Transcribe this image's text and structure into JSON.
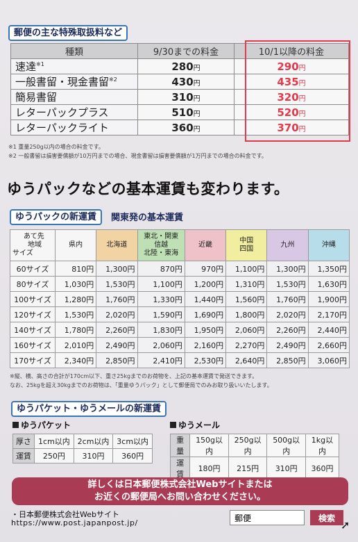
{
  "section1": {
    "title": "郵便の主な特殊取扱料など",
    "headers": [
      "種類",
      "9/30までの料金",
      "10/1以降の料金"
    ],
    "rows": [
      {
        "name": "速達",
        "sup": "※1",
        "old": "280",
        "new": "290"
      },
      {
        "name": "一般書留・現金書留",
        "sup": "※2",
        "old": "430",
        "new": "435"
      },
      {
        "name": "簡易書留",
        "sup": "",
        "old": "310",
        "new": "320"
      },
      {
        "name": "レターパックプラス",
        "sup": "",
        "old": "510",
        "new": "520"
      },
      {
        "name": "レターパックライト",
        "sup": "",
        "old": "360",
        "new": "370"
      }
    ],
    "yen": "円",
    "notes": [
      "※1 重量250g以内の場合の料金です。",
      "※2 一般書留は損害要償額が10万円までの場合、現金書留は損害要償額が1万円までの場合の料金です。"
    ]
  },
  "headline": "ゆうパックなどの基本運賃も変わります。",
  "section2": {
    "title": "ゆうパックの新運賃",
    "subtitle": "関東発の基本運賃",
    "corner": {
      "top": "あて先",
      "mid": "地域",
      "bottom": "サイズ"
    },
    "regions": [
      {
        "label": "県内",
        "color": "#f6f6f7"
      },
      {
        "label": "北海道",
        "color": "#f2d3a4"
      },
      {
        "label": "東北・関東\n信越\n北陸・東海",
        "color": "#bfe0b4"
      },
      {
        "label": "近畿",
        "color": "#eec2c8"
      },
      {
        "label": "中国\n四国",
        "color": "#f2ee9f"
      },
      {
        "label": "九州",
        "color": "#d9c7e6"
      },
      {
        "label": "沖縄",
        "color": "#b7dcea"
      }
    ],
    "rows": [
      {
        "size": "60サイズ",
        "values": [
          "810円",
          "1,300円",
          "870円",
          "970円",
          "1,100円",
          "1,300円",
          "1,350円"
        ]
      },
      {
        "size": "80サイズ",
        "values": [
          "1,030円",
          "1,530円",
          "1,100円",
          "1,200円",
          "1,310円",
          "1,530円",
          "1,630円"
        ]
      },
      {
        "size": "100サイズ",
        "values": [
          "1,280円",
          "1,760円",
          "1,330円",
          "1,440円",
          "1,560円",
          "1,760円",
          "1,900円"
        ]
      },
      {
        "size": "120サイズ",
        "values": [
          "1,530円",
          "2,020円",
          "1,590円",
          "1,690円",
          "1,800円",
          "2,020円",
          "2,170円"
        ]
      },
      {
        "size": "140サイズ",
        "values": [
          "1,780円",
          "2,260円",
          "1,830円",
          "1,950円",
          "2,060円",
          "2,260円",
          "2,440円"
        ]
      },
      {
        "size": "160サイズ",
        "values": [
          "2,010円",
          "2,490円",
          "2,060円",
          "2,160円",
          "2,270円",
          "2,490円",
          "2,660円"
        ]
      },
      {
        "size": "170サイズ",
        "values": [
          "2,340円",
          "2,850円",
          "2,410円",
          "2,530円",
          "2,640円",
          "2,850円",
          "3,060円"
        ]
      }
    ],
    "notes": [
      "※縦、横、高さの合計が170cm以下、重さ25kgまでのお荷物を、上記の基本運賃で発送できます。",
      "なお、25kgを超え30kgまでのお荷物は、「重量ゆうパック」として郵便局でのみお取り扱いいたします。"
    ]
  },
  "section3": {
    "title": "ゆうパケット・ゆうメールの新運賃",
    "packet": {
      "label": "ゆうパケット",
      "row1": [
        "厚さ",
        "1cm以内",
        "2cm以内",
        "3cm以内"
      ],
      "row2": [
        "運賃",
        "250円",
        "310円",
        "360円"
      ]
    },
    "mail": {
      "label": "ゆうメール",
      "row1": [
        "重量",
        "150g以内",
        "250g以内",
        "500g以内",
        "1kg以内"
      ],
      "row2": [
        "運賃",
        "180円",
        "215円",
        "310円",
        "360円"
      ]
    }
  },
  "banner": {
    "line1": "詳しくは日本郵便株式会社Webサイトまたは",
    "line2": "お近くの郵便局へお問い合わせください。"
  },
  "footer": {
    "company": "・日本郵便株式会社Webサイト",
    "url": "https://www.post.japanpost.jp/",
    "search_value": "郵便",
    "search_button": "検索"
  },
  "colors": {
    "accent_blue": "#3a75b8",
    "new_price_red": "#e23a4a",
    "banner": "#a93b55"
  }
}
